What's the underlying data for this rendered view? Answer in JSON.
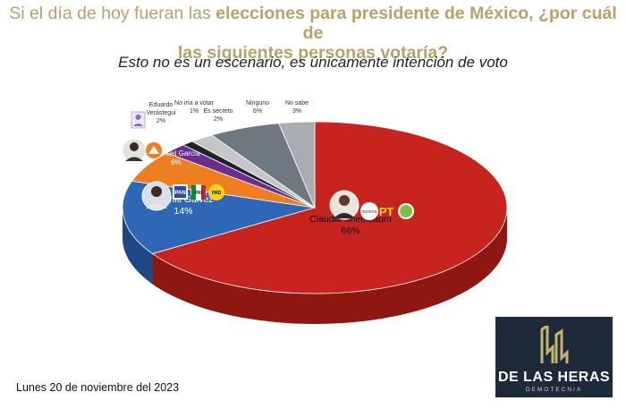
{
  "title": {
    "part1": "Si el día de hoy fueran las ",
    "bold1": "elecciones para presidente de México, ¿por cuál de",
    "line2": "las siguientes personas votaría?"
  },
  "subtitle": "Esto no es un escenario, es únicamente intención de voto",
  "footer": {
    "date": "Lunes 20 de noviembre del 2023"
  },
  "logo": {
    "name": "DE LAS HERAS",
    "sub": "DEMOTECNIA"
  },
  "party_icons": {
    "morena": "morena",
    "pt": "PT",
    "pan": "PAN",
    "pri": "PRI",
    "prd": "PRD"
  },
  "chart_data": {
    "type": "pie",
    "title": "Si el día de hoy fueran las elecciones para presidente de México, ¿por cuál de las siguientes personas votaría?",
    "slices": [
      {
        "name_lines": [
          "Claudia Sheinbaum"
        ],
        "label": "66%",
        "value": 66,
        "color": "#c8241f",
        "side": "#8f1712"
      },
      {
        "name_lines": [
          "Xóchitl Gálvez"
        ],
        "label": "14%",
        "value": 14,
        "color": "#2f67b7",
        "side": "#1e4785"
      },
      {
        "name_lines": [
          "Samuel García"
        ],
        "label": "6%",
        "value": 6,
        "color": "#ef7d22",
        "side": "#b45a14"
      },
      {
        "name_lines": [
          "Eduardo",
          "Verástegui"
        ],
        "label": "2%",
        "value": 2,
        "color": "#6a2d91",
        "side": "#4b1f67"
      },
      {
        "name_lines": [
          "No iría a votar"
        ],
        "label": "1%",
        "value": 1,
        "color": "#1e2329",
        "side": "#0e1114"
      },
      {
        "name_lines": [
          "Es secreto"
        ],
        "label": "2%",
        "value": 2,
        "color": "#c4c6c9",
        "side": "#8f9194"
      },
      {
        "name_lines": [
          "Ninguno"
        ],
        "label": "6%",
        "value": 6,
        "color": "#6f7780",
        "side": "#4d535a"
      },
      {
        "name_lines": [
          "No sabe"
        ],
        "label": "3%",
        "value": 3,
        "color": "#a9adb1",
        "side": "#7a7d80"
      }
    ]
  }
}
